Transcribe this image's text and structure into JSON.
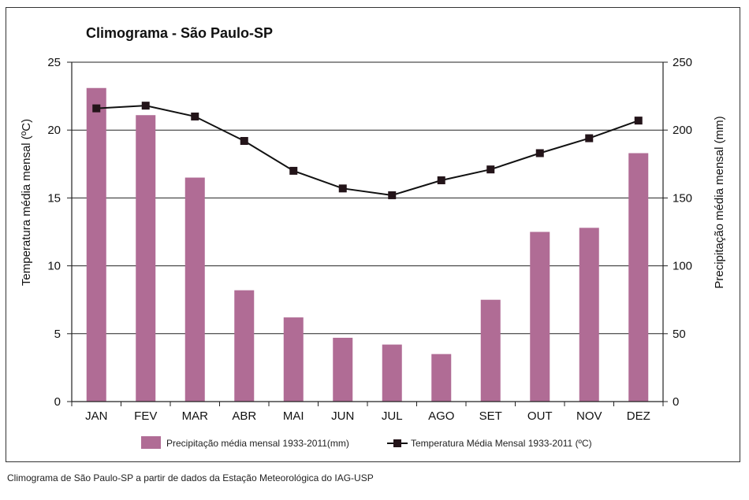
{
  "caption": "Climograma de São Paulo-SP a partir de dados da Estação Meteorológica do IAG-USP",
  "colors": {
    "bar": "#b06c95",
    "line": "#111111",
    "marker": "#231419",
    "grid": "#222222"
  },
  "chart_data": {
    "type": "bar+line",
    "title": "Climograma - São Paulo-SP",
    "categories": [
      "JAN",
      "FEV",
      "MAR",
      "ABR",
      "MAI",
      "JUN",
      "JUL",
      "AGO",
      "SET",
      "OUT",
      "NOV",
      "DEZ"
    ],
    "ylabel_left": "Temperatura média mensal (ºC)",
    "ylabel_right": "Precipitação média mensal (mm)",
    "ylim_left": [
      0,
      25
    ],
    "ylim_right": [
      0,
      250
    ],
    "yticks_left": [
      "0",
      "5",
      "10",
      "15",
      "20",
      "25"
    ],
    "yticks_right": [
      "0",
      "50",
      "100",
      "150",
      "200",
      "250"
    ],
    "grid": true,
    "legend_position": "bottom",
    "series": [
      {
        "name": "Precipitação média mensal 1933-2011(mm)",
        "type": "bar",
        "axis": "right",
        "values": [
          231,
          211,
          165,
          82,
          62,
          47,
          42,
          35,
          75,
          125,
          128,
          183
        ]
      },
      {
        "name": "Temperatura Média Mensal 1933-2011 (ºC)",
        "type": "line",
        "axis": "left",
        "values": [
          21.6,
          21.8,
          21.0,
          19.2,
          17.0,
          15.7,
          15.2,
          16.3,
          17.1,
          18.3,
          19.4,
          20.7
        ]
      }
    ]
  }
}
